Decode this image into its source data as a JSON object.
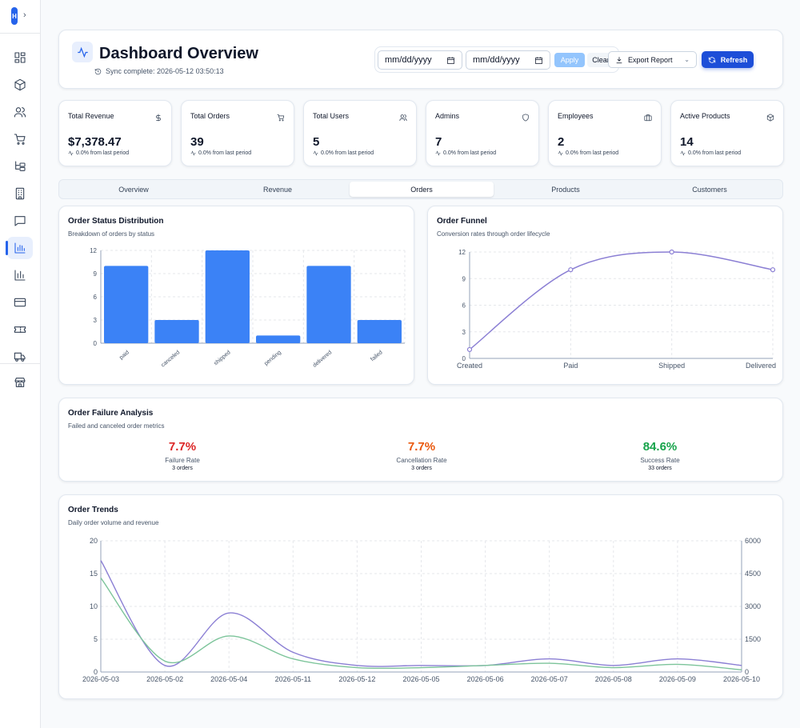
{
  "sidebar": {
    "logo": "H",
    "items": [
      {
        "name": "sidebar-item-dashboard",
        "icon": "layout-dashboard-icon"
      },
      {
        "name": "sidebar-item-products",
        "icon": "package-icon"
      },
      {
        "name": "sidebar-item-users",
        "icon": "users-icon"
      },
      {
        "name": "sidebar-item-cart",
        "icon": "shopping-cart-icon"
      },
      {
        "name": "sidebar-item-categories",
        "icon": "folder-tree-icon"
      },
      {
        "name": "sidebar-item-buildings",
        "icon": "building-icon"
      },
      {
        "name": "sidebar-item-messages",
        "icon": "message-square-icon"
      },
      {
        "name": "sidebar-item-analytics",
        "icon": "bar-chart-icon",
        "active": true
      },
      {
        "name": "sidebar-item-reports",
        "icon": "bar-chart-2-icon"
      },
      {
        "name": "sidebar-item-payments",
        "icon": "credit-card-icon"
      },
      {
        "name": "sidebar-item-tickets",
        "icon": "ticket-icon"
      },
      {
        "name": "sidebar-item-shipping",
        "icon": "truck-icon"
      },
      {
        "name": "sidebar-item-store",
        "icon": "store-icon"
      }
    ]
  },
  "header": {
    "title": "Dashboard Overview",
    "sync": "Sync complete: 2026-05-12 03:50:13",
    "date_from_placeholder": "mm/dd/yyyy",
    "date_to_placeholder": "mm/dd/yyyy",
    "apply_label": "Apply",
    "clear_label": "Clear",
    "export_label": "Export Report",
    "refresh_label": "Refresh"
  },
  "stats": [
    {
      "label": "Total Revenue",
      "value": "$7,378.47",
      "change": "0.0% from last period",
      "icon": "dollar-icon"
    },
    {
      "label": "Total Orders",
      "value": "39",
      "change": "0.0% from last period",
      "icon": "shopping-cart-icon"
    },
    {
      "label": "Total Users",
      "value": "5",
      "change": "0.0% from last period",
      "icon": "users-icon"
    },
    {
      "label": "Admins",
      "value": "7",
      "change": "0.0% from last period",
      "icon": "shield-icon"
    },
    {
      "label": "Employees",
      "value": "2",
      "change": "0.0% from last period",
      "icon": "briefcase-icon"
    },
    {
      "label": "Active Products",
      "value": "14",
      "change": "0.0% from last period",
      "icon": "package-icon"
    }
  ],
  "tabs": [
    {
      "label": "Overview"
    },
    {
      "label": "Revenue"
    },
    {
      "label": "Orders",
      "active": true
    },
    {
      "label": "Products"
    },
    {
      "label": "Customers"
    }
  ],
  "status_panel": {
    "title": "Order Status Distribution",
    "subtitle": "Breakdown of orders by status"
  },
  "funnel_panel": {
    "title": "Order Funnel",
    "subtitle": "Conversion rates through order lifecycle"
  },
  "failure": {
    "title": "Order Failure Analysis",
    "subtitle": "Failed and canceled order metrics",
    "metrics": [
      {
        "value": "7.7%",
        "label": "Failure Rate",
        "sub": "3 orders",
        "color": "#dc2626"
      },
      {
        "value": "7.7%",
        "label": "Cancellation Rate",
        "sub": "3 orders",
        "color": "#ea580c"
      },
      {
        "value": "84.6%",
        "label": "Success Rate",
        "sub": "33 orders",
        "color": "#16a34a"
      }
    ]
  },
  "trends_panel": {
    "title": "Order Trends",
    "subtitle": "Daily order volume and revenue"
  },
  "chart_data": [
    {
      "type": "bar",
      "categories": [
        "paid",
        "canceled",
        "shipped",
        "pending",
        "delivered",
        "failed"
      ],
      "values": [
        10,
        3,
        12,
        1,
        10,
        3
      ],
      "ylim": [
        0,
        12
      ],
      "yticks": [
        0,
        3,
        6,
        9,
        12
      ],
      "color": "#3b82f6",
      "grid": true
    },
    {
      "type": "line",
      "categories": [
        "Created",
        "Paid",
        "Shipped",
        "Delivered"
      ],
      "values": [
        1,
        10,
        12,
        10
      ],
      "ylim": [
        0,
        12
      ],
      "yticks": [
        0,
        3,
        6,
        9,
        12
      ],
      "color": "#8b7fd4",
      "grid": true
    },
    {
      "type": "line",
      "categories": [
        "2026-05-03",
        "2026-05-02",
        "2026-05-04",
        "2026-05-11",
        "2026-05-12",
        "2026-05-05",
        "2026-05-06",
        "2026-05-07",
        "2026-05-08",
        "2026-05-09",
        "2026-05-10"
      ],
      "series": [
        {
          "axis": "left",
          "color": "#8b7fd4",
          "values": [
            17,
            1,
            9,
            3,
            1,
            1,
            1,
            2,
            1,
            2,
            1
          ]
        },
        {
          "axis": "right",
          "color": "#7cc49a",
          "values": [
            4300,
            500,
            1650,
            600,
            200,
            200,
            300,
            400,
            200,
            350,
            100
          ]
        }
      ],
      "ylim_left": [
        0,
        20
      ],
      "yticks_left": [
        0,
        5,
        10,
        15,
        20
      ],
      "ylim_right": [
        0,
        6000
      ],
      "yticks_right": [
        0,
        1500,
        3000,
        4500,
        6000
      ],
      "grid": true
    }
  ]
}
